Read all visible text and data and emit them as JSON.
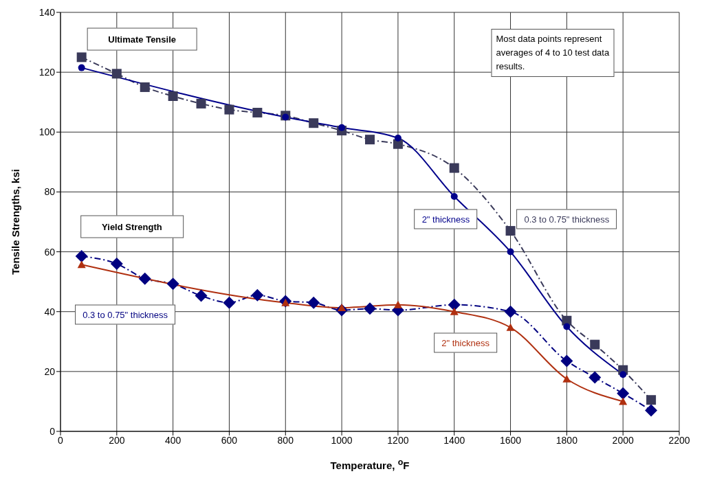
{
  "chart_data": {
    "type": "line",
    "xlabel": "Temperature, $^{o}$F",
    "ylabel": "Tensile Strengths, ksi",
    "xlim": [
      0,
      2200
    ],
    "xticks": [
      0,
      200,
      400,
      600,
      800,
      1000,
      1200,
      1400,
      1600,
      1800,
      2000,
      2200
    ],
    "ylim": [
      0,
      140
    ],
    "yticks": [
      0,
      20,
      40,
      60,
      80,
      100,
      120,
      140
    ],
    "grid": true,
    "annotations": [
      "Ultimate Tensile",
      "Yield Strength",
      "Most data points represent averages of 4 to 10 test data results."
    ],
    "series": [
      {
        "name": "0.3 to 0.75\" thickness",
        "color": "#3a3a5a",
        "marker": "square",
        "line_style": "dashed",
        "x": [
          75,
          200,
          300,
          400,
          500,
          600,
          700,
          800,
          900,
          1000,
          1100,
          1200,
          1400,
          1600,
          1800,
          1900,
          2000,
          2100
        ],
        "values": [
          125,
          119.5,
          115,
          112,
          109.5,
          107.5,
          106.5,
          105.5,
          103,
          100.5,
          97.5,
          96,
          88,
          67,
          37,
          29,
          20.5,
          10.5
        ]
      },
      {
        "name": "2\" thickness",
        "color": "#00008b",
        "marker": "circle",
        "line_style": "solid",
        "x": [
          75,
          800,
          1000,
          1200,
          1400,
          1600,
          1800,
          2000
        ],
        "values": [
          121.5,
          105,
          101.5,
          98,
          78.5,
          60,
          35,
          19
        ]
      },
      {
        "name": "0.3 to 0.75\" thickness",
        "color": "#000080",
        "marker": "diamond",
        "line_style": "dashed",
        "x": [
          75,
          200,
          300,
          400,
          500,
          600,
          700,
          800,
          900,
          1000,
          1100,
          1200,
          1400,
          1600,
          1800,
          1900,
          2000,
          2100
        ],
        "values": [
          58.5,
          56,
          51,
          49.3,
          45.3,
          43,
          45.5,
          43.5,
          43,
          40.5,
          41,
          40.5,
          42.3,
          40,
          23.5,
          18,
          12.7,
          7
        ]
      },
      {
        "name": "2\" thickness",
        "color": "#b03010",
        "marker": "triangle",
        "line_style": "solid",
        "x": [
          75,
          800,
          1000,
          1200,
          1400,
          1600,
          1800,
          2000
        ],
        "values": [
          55.7,
          43,
          41.3,
          42.3,
          40,
          34.7,
          17.5,
          10
        ]
      }
    ]
  }
}
